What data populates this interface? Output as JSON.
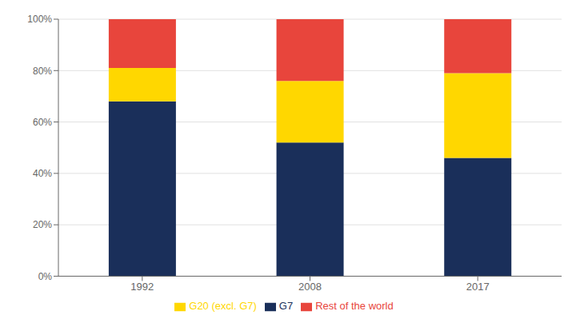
{
  "chart_data": {
    "type": "bar",
    "categories": [
      "1992",
      "2008",
      "2017"
    ],
    "series": [
      {
        "name": "G7",
        "color": "#1a2f5a",
        "values": [
          0.68,
          0.52,
          0.46
        ]
      },
      {
        "name": "G20 (excl. G7)",
        "color": "#ffd700",
        "values": [
          0.13,
          0.24,
          0.33
        ]
      },
      {
        "name": "Rest of the world",
        "color": "#e8453c",
        "values": [
          0.19,
          0.24,
          0.21
        ]
      }
    ],
    "stacked": true,
    "ylim": [
      0,
      1.0
    ],
    "yticks": [
      {
        "value": 0.0,
        "label": "0%"
      },
      {
        "value": 0.2,
        "label": "20%"
      },
      {
        "value": 0.4,
        "label": "40%"
      },
      {
        "value": 0.6,
        "label": "60%"
      },
      {
        "value": 0.8,
        "label": "80%"
      },
      {
        "value": 1.0,
        "label": "100%"
      }
    ],
    "grid": true,
    "legend": "bottom"
  }
}
